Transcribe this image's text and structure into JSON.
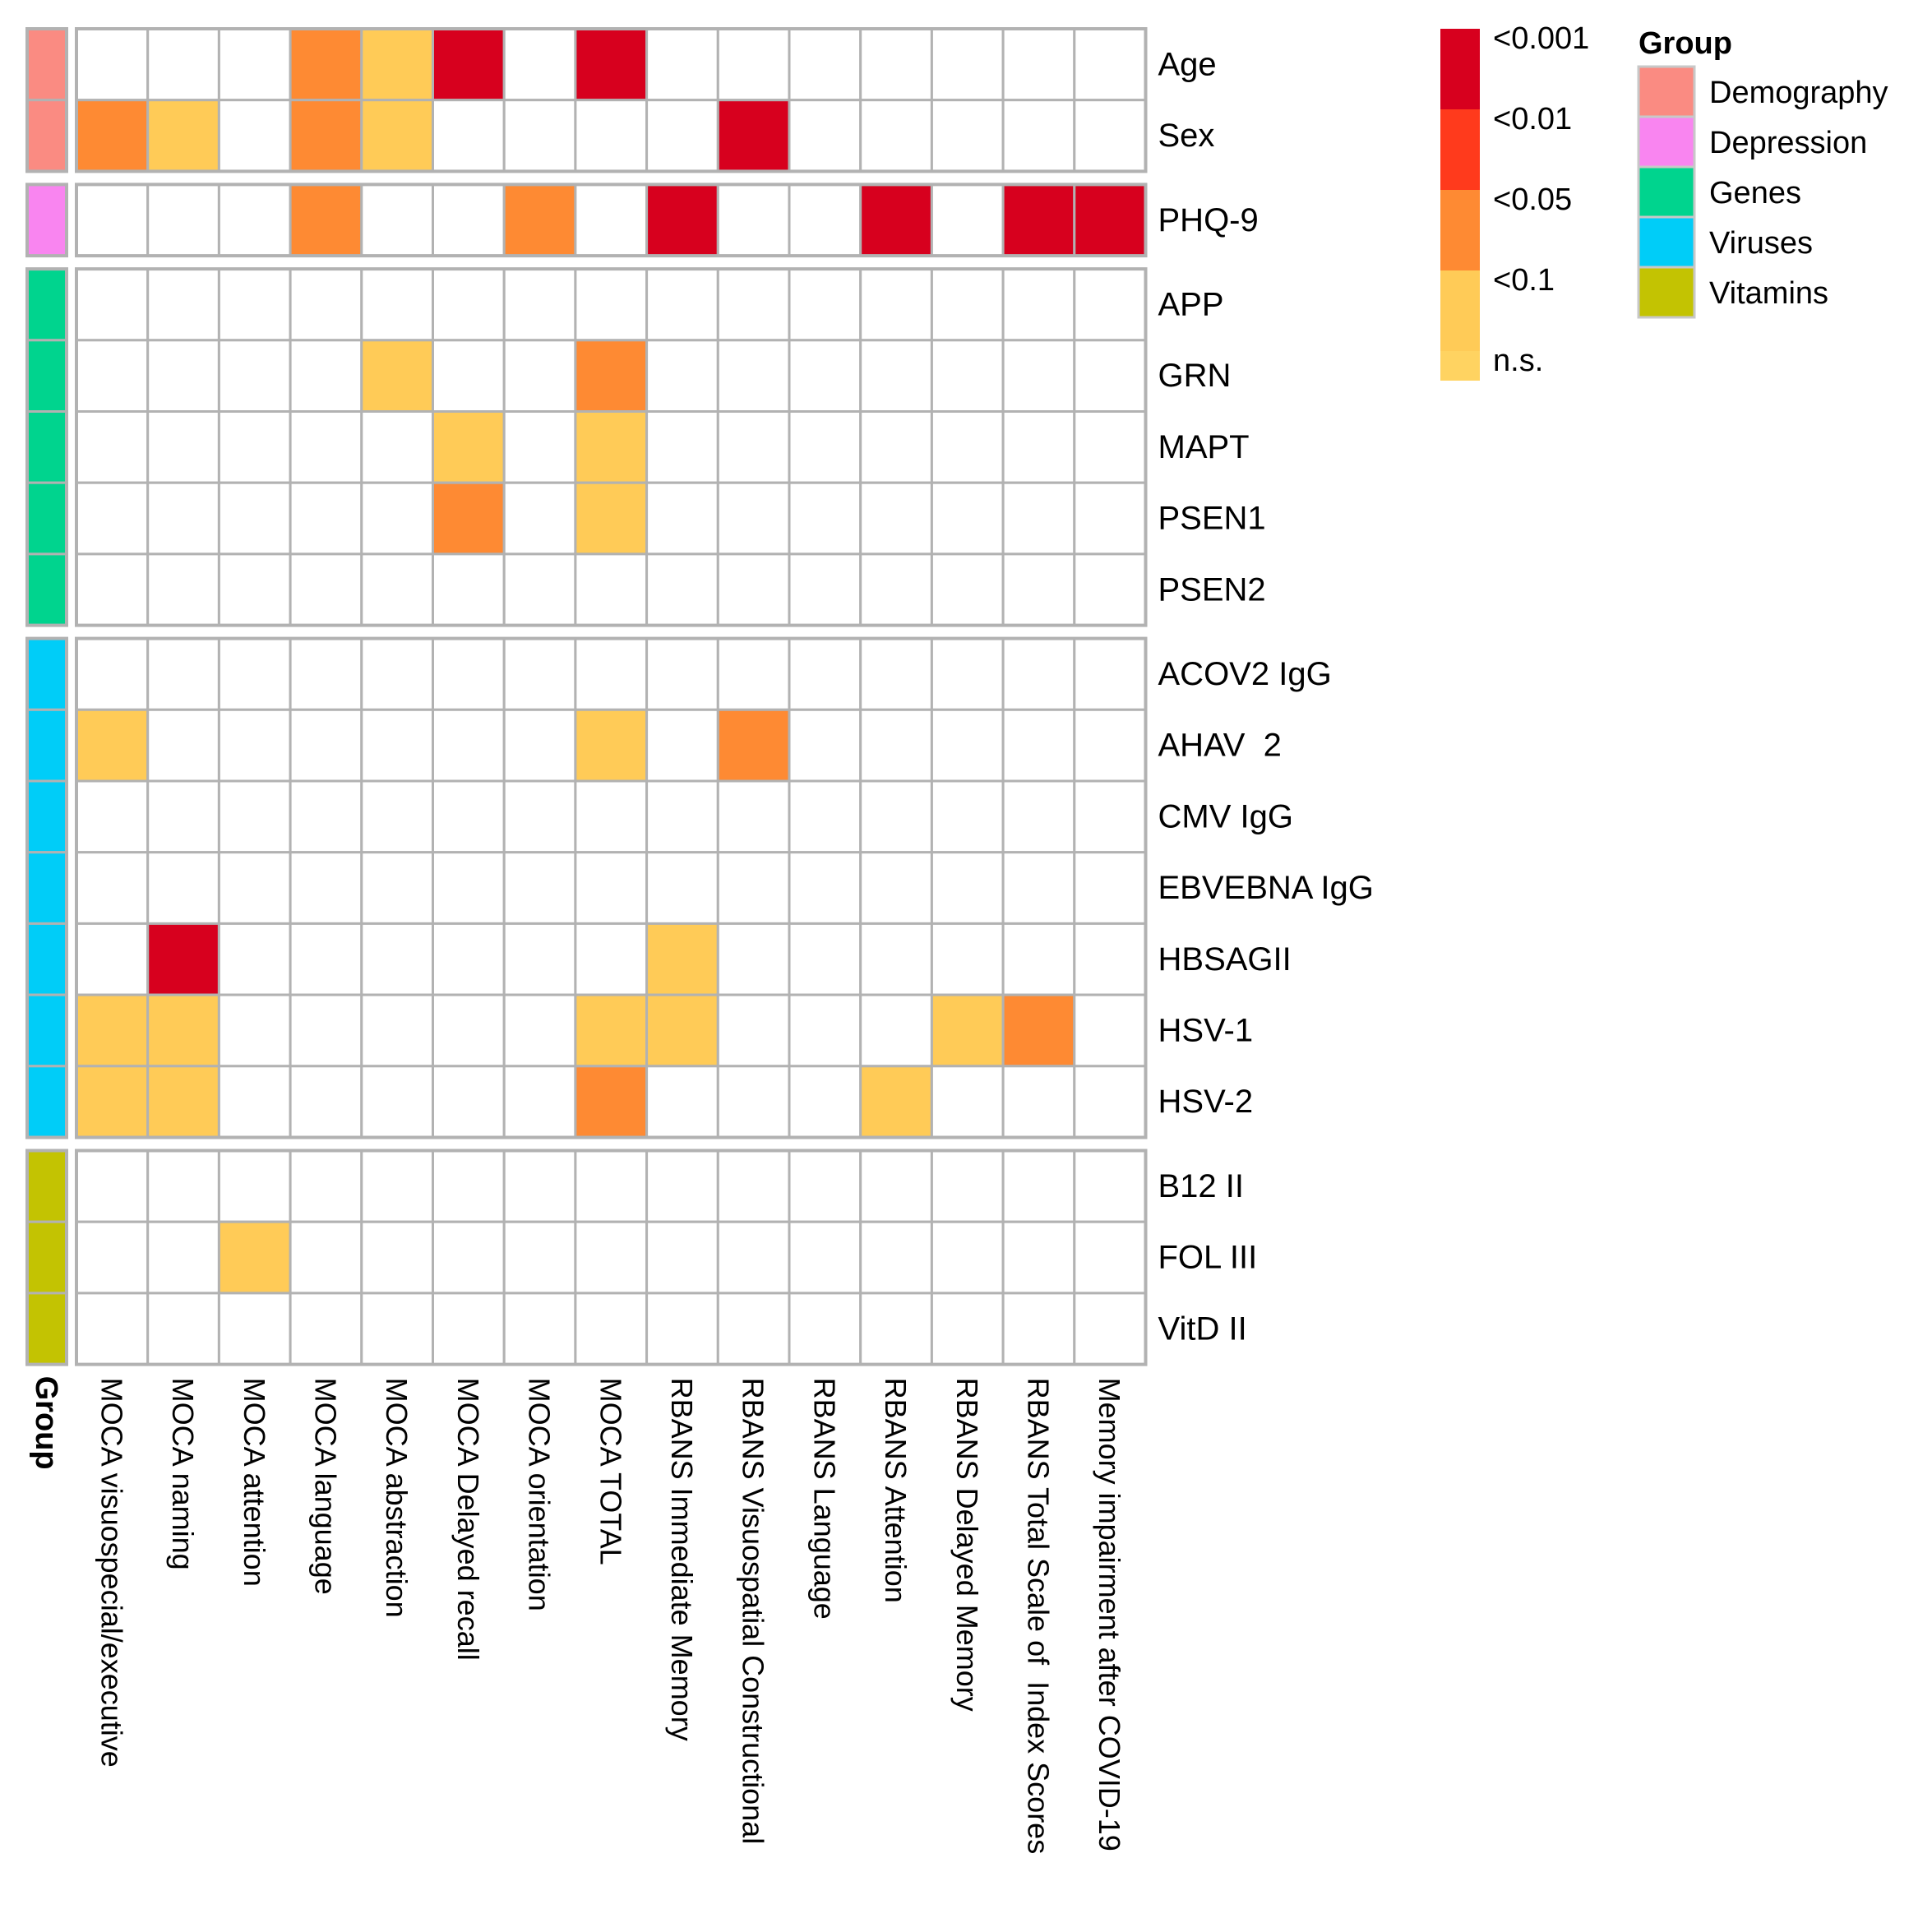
{
  "chart_data": {
    "type": "heatmap",
    "columns": [
      "MOCA visuospecial/executive",
      "MOCA naming",
      "MOCA attention",
      "MOCA language",
      "MOCA abstraction",
      "MOCA Delayed recall",
      "MOCA orientation",
      "MOCA TOTAL",
      "RBANS Immediate Memory",
      "RBANS Visuospatial Constructional",
      "RBANS Language",
      "RBANS Attention",
      "RBANS Delayed Memory",
      "RBANS Total Scale of  Index Scores",
      "Memory impairment after COVID-19"
    ],
    "row_blocks": [
      {
        "group": "Demography",
        "rows": [
          {
            "label": "Age",
            "values": [
              "n.s.",
              "n.s.",
              "n.s.",
              "<0.05",
              "<0.1",
              "<0.001",
              "n.s.",
              "<0.001",
              "n.s.",
              "n.s.",
              "n.s.",
              "n.s.",
              "n.s.",
              "n.s.",
              "n.s."
            ]
          },
          {
            "label": "Sex",
            "values": [
              "<0.05",
              "<0.1",
              "n.s.",
              "<0.05",
              "<0.1",
              "n.s.",
              "n.s.",
              "n.s.",
              "n.s.",
              "<0.001",
              "n.s.",
              "n.s.",
              "n.s.",
              "n.s.",
              "n.s."
            ]
          }
        ]
      },
      {
        "group": "Depression",
        "rows": [
          {
            "label": "PHQ-9",
            "values": [
              "n.s.",
              "n.s.",
              "n.s.",
              "<0.05",
              "n.s.",
              "n.s.",
              "<0.05",
              "n.s.",
              "<0.001",
              "n.s.",
              "n.s.",
              "<0.001",
              "n.s.",
              "<0.001",
              "<0.001"
            ]
          }
        ]
      },
      {
        "group": "Genes",
        "rows": [
          {
            "label": "APP",
            "values": [
              "n.s.",
              "n.s.",
              "n.s.",
              "n.s.",
              "n.s.",
              "n.s.",
              "n.s.",
              "n.s.",
              "n.s.",
              "n.s.",
              "n.s.",
              "n.s.",
              "n.s.",
              "n.s.",
              "n.s."
            ]
          },
          {
            "label": "GRN",
            "values": [
              "n.s.",
              "n.s.",
              "n.s.",
              "n.s.",
              "<0.1",
              "n.s.",
              "n.s.",
              "<0.05",
              "n.s.",
              "n.s.",
              "n.s.",
              "n.s.",
              "n.s.",
              "n.s.",
              "n.s."
            ]
          },
          {
            "label": "MAPT",
            "values": [
              "n.s.",
              "n.s.",
              "n.s.",
              "n.s.",
              "n.s.",
              "<0.1",
              "n.s.",
              "<0.1",
              "n.s.",
              "n.s.",
              "n.s.",
              "n.s.",
              "n.s.",
              "n.s.",
              "n.s."
            ]
          },
          {
            "label": "PSEN1",
            "values": [
              "n.s.",
              "n.s.",
              "n.s.",
              "n.s.",
              "n.s.",
              "<0.05",
              "n.s.",
              "<0.1",
              "n.s.",
              "n.s.",
              "n.s.",
              "n.s.",
              "n.s.",
              "n.s.",
              "n.s."
            ]
          },
          {
            "label": "PSEN2",
            "values": [
              "n.s.",
              "n.s.",
              "n.s.",
              "n.s.",
              "n.s.",
              "n.s.",
              "n.s.",
              "n.s.",
              "n.s.",
              "n.s.",
              "n.s.",
              "n.s.",
              "n.s.",
              "n.s.",
              "n.s."
            ]
          }
        ]
      },
      {
        "group": "Viruses",
        "rows": [
          {
            "label": "ACOV2 IgG",
            "values": [
              "n.s.",
              "n.s.",
              "n.s.",
              "n.s.",
              "n.s.",
              "n.s.",
              "n.s.",
              "n.s.",
              "n.s.",
              "n.s.",
              "n.s.",
              "n.s.",
              "n.s.",
              "n.s.",
              "n.s."
            ]
          },
          {
            "label": "AHAV  2",
            "values": [
              "<0.1",
              "n.s.",
              "n.s.",
              "n.s.",
              "n.s.",
              "n.s.",
              "n.s.",
              "<0.1",
              "n.s.",
              "<0.05",
              "n.s.",
              "n.s.",
              "n.s.",
              "n.s.",
              "n.s."
            ]
          },
          {
            "label": "CMV IgG",
            "values": [
              "n.s.",
              "n.s.",
              "n.s.",
              "n.s.",
              "n.s.",
              "n.s.",
              "n.s.",
              "n.s.",
              "n.s.",
              "n.s.",
              "n.s.",
              "n.s.",
              "n.s.",
              "n.s.",
              "n.s."
            ]
          },
          {
            "label": "EBVEBNA IgG",
            "values": [
              "n.s.",
              "n.s.",
              "n.s.",
              "n.s.",
              "n.s.",
              "n.s.",
              "n.s.",
              "n.s.",
              "n.s.",
              "n.s.",
              "n.s.",
              "n.s.",
              "n.s.",
              "n.s.",
              "n.s."
            ]
          },
          {
            "label": "HBSAGII",
            "values": [
              "n.s.",
              "<0.001",
              "n.s.",
              "n.s.",
              "n.s.",
              "n.s.",
              "n.s.",
              "n.s.",
              "<0.1",
              "n.s.",
              "n.s.",
              "n.s.",
              "n.s.",
              "n.s.",
              "n.s."
            ]
          },
          {
            "label": "HSV-1",
            "values": [
              "<0.1",
              "<0.1",
              "n.s.",
              "n.s.",
              "n.s.",
              "n.s.",
              "n.s.",
              "<0.1",
              "<0.1",
              "n.s.",
              "n.s.",
              "n.s.",
              "<0.1",
              "<0.05",
              "n.s."
            ]
          },
          {
            "label": "HSV-2",
            "values": [
              "<0.1",
              "<0.1",
              "n.s.",
              "n.s.",
              "n.s.",
              "n.s.",
              "n.s.",
              "<0.05",
              "n.s.",
              "n.s.",
              "n.s.",
              "<0.1",
              "n.s.",
              "n.s.",
              "n.s."
            ]
          }
        ]
      },
      {
        "group": "Vitamins",
        "rows": [
          {
            "label": "B12 II",
            "values": [
              "n.s.",
              "n.s.",
              "n.s.",
              "n.s.",
              "n.s.",
              "n.s.",
              "n.s.",
              "n.s.",
              "n.s.",
              "n.s.",
              "n.s.",
              "n.s.",
              "n.s.",
              "n.s.",
              "n.s."
            ]
          },
          {
            "label": "FOL III",
            "values": [
              "n.s.",
              "n.s.",
              "<0.1",
              "n.s.",
              "n.s.",
              "n.s.",
              "n.s.",
              "n.s.",
              "n.s.",
              "n.s.",
              "n.s.",
              "n.s.",
              "n.s.",
              "n.s.",
              "n.s."
            ]
          },
          {
            "label": "VitD II",
            "values": [
              "n.s.",
              "n.s.",
              "n.s.",
              "n.s.",
              "n.s.",
              "n.s.",
              "n.s.",
              "n.s.",
              "n.s.",
              "n.s.",
              "n.s.",
              "n.s.",
              "n.s.",
              "n.s.",
              "n.s."
            ]
          }
        ]
      }
    ],
    "group_annotation_label": "Group",
    "significance_legend": {
      "levels": [
        "<0.001",
        "<0.01",
        "<0.05",
        "<0.1",
        "n.s."
      ],
      "colors": {
        "<0.001": "#d7001e",
        "<0.01": "#ff3a1c",
        "<0.05": "#fe8a33",
        "<0.1": "#ffcb57",
        "n.s.": "#ffffff"
      }
    },
    "group_legend": {
      "title": "Group",
      "items": [
        {
          "name": "Demography",
          "color": "#fa8b82"
        },
        {
          "name": "Depression",
          "color": "#f985f0"
        },
        {
          "name": "Genes",
          "color": "#00d48e"
        },
        {
          "name": "Viruses",
          "color": "#00cdf8"
        },
        {
          "name": "Vitamins",
          "color": "#c3c302"
        }
      ]
    }
  }
}
